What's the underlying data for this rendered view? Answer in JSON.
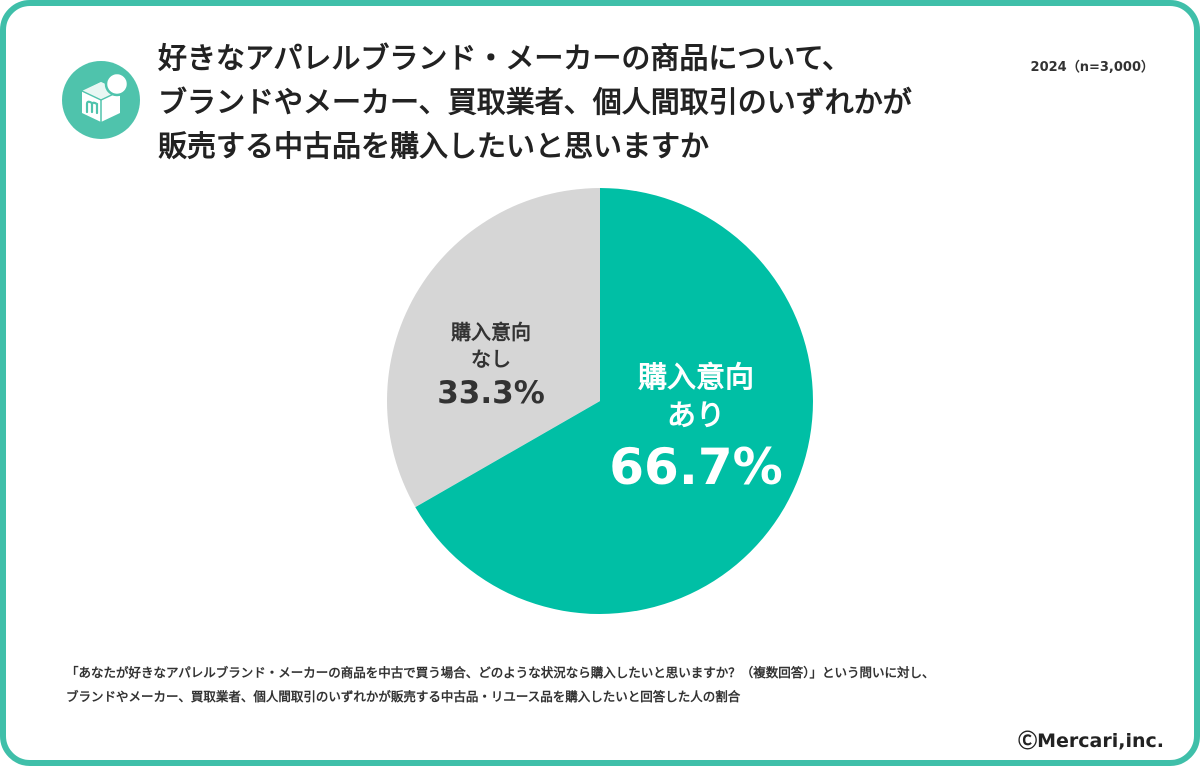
{
  "title": {
    "line1": "好きなアパレルブランド・メーカーの商品について、",
    "line2": "ブランドやメーカー、買取業者、個人間取引のいずれかが",
    "line3": "販売する中古品を購入したいと思いますか"
  },
  "sample_note": "2024（n=3,000）",
  "chart_data": {
    "type": "pie",
    "title": "好きなアパレルブランド・メーカーの商品について、ブランドやメーカー、買取業者、個人間取引のいずれかが販売する中古品を購入したいと思いますか",
    "slices": [
      {
        "label_line1": "購入意向",
        "label_line2": "あり",
        "value": 66.7,
        "display": "66.7%",
        "color": "#00bfa5"
      },
      {
        "label_line1": "購入意向",
        "label_line2": "なし",
        "value": 33.3,
        "display": "33.3%",
        "color": "#d6d6d6"
      }
    ],
    "start_angle_deg": 0,
    "direction": "clockwise"
  },
  "footnote": {
    "line1": "「あなたが好きなアパレルブランド・メーカーの商品を中古で買う場合、どのような状況なら購入したいと思いますか？（複数回答）」という問いに対し、",
    "line2": "ブランドやメーカー、買取業者、個人間取引のいずれかが販売する中古品・リユース品を購入したいと回答した人の割合"
  },
  "copyright": "ⒸMercari,inc.",
  "colors": {
    "border": "#3fbfa9",
    "accent": "#00bfa5",
    "secondary": "#d6d6d6",
    "logo": "#4fc3ac"
  },
  "logo_icon": "mercari-box-logo"
}
